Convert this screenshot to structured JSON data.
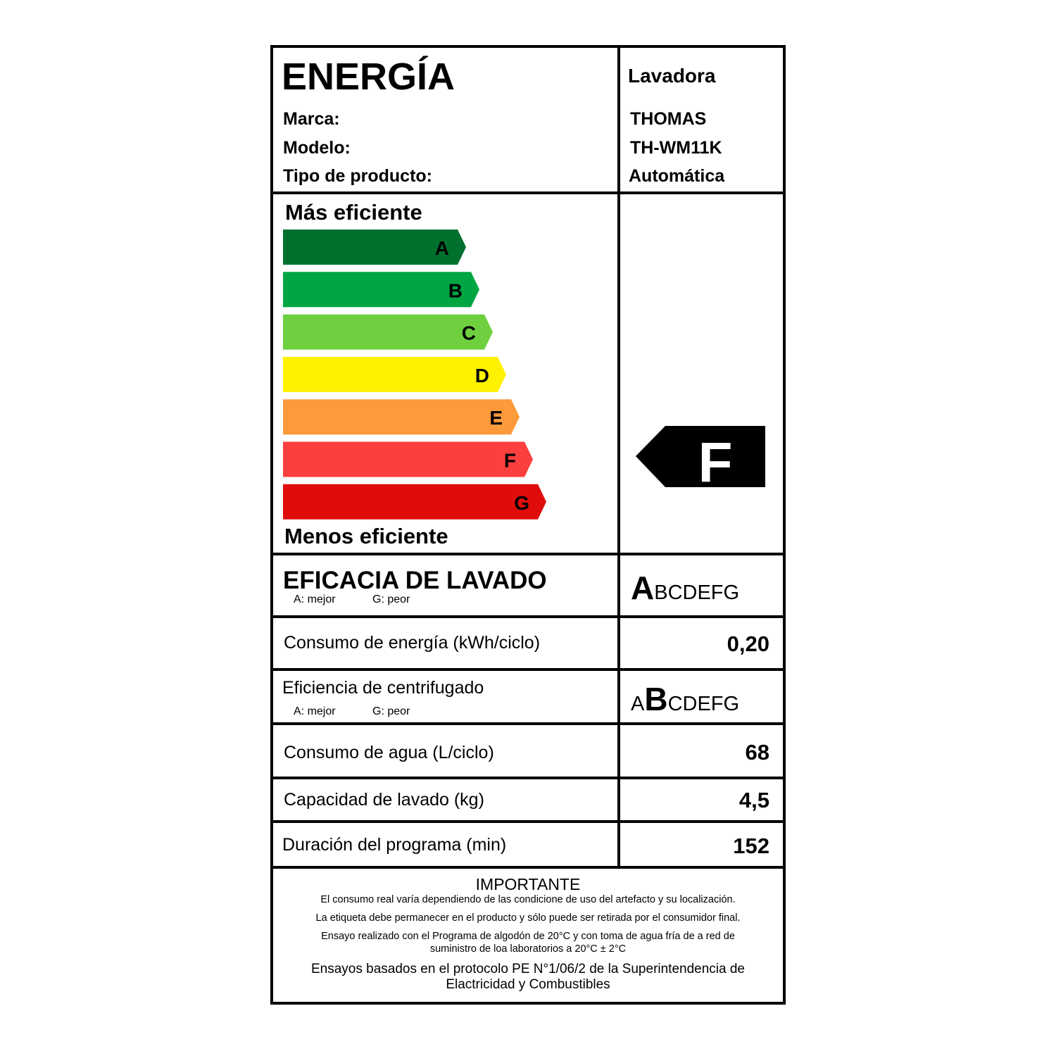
{
  "header": {
    "title": "ENERGÍA",
    "product": "Lavadora",
    "fields": [
      {
        "label": "Marca:",
        "value": "THOMAS"
      },
      {
        "label": "Modelo:",
        "value": "TH-WM11K"
      },
      {
        "label": "Tipo de producto:",
        "value": "Automática"
      }
    ]
  },
  "scale": {
    "top_label": "Más eficiente",
    "bottom_label": "Menos eficiente",
    "classes": [
      {
        "letter": "A",
        "color": "#00702e"
      },
      {
        "letter": "B",
        "color": "#00a642"
      },
      {
        "letter": "C",
        "color": "#6fd03f"
      },
      {
        "letter": "D",
        "color": "#fff200"
      },
      {
        "letter": "E",
        "color": "#fd9a3b"
      },
      {
        "letter": "F",
        "color": "#fb3e3e"
      },
      {
        "letter": "G",
        "color": "#e00c0c"
      }
    ],
    "rating": "F"
  },
  "washing": {
    "label": "EFICACIA DE LAVADO",
    "best": "A: mejor",
    "worst": "G: peor",
    "selected": "A",
    "rest": "BCDEFG"
  },
  "energy": {
    "label": "Consumo de energía (kWh/ciclo)",
    "value": "0,20"
  },
  "spin": {
    "label": "Eficiencia de centrifugado",
    "best": "A: mejor",
    "worst": "G: peor",
    "before": "A",
    "selected": "B",
    "rest": "CDEFG"
  },
  "water": {
    "label": "Consumo de agua (L/ciclo)",
    "value": "68"
  },
  "capacity": {
    "label": "Capacidad de lavado (kg)",
    "value": "4,5"
  },
  "duration": {
    "label": "Duración del programa (min)",
    "value": "152"
  },
  "important": {
    "title": "IMPORTANTE",
    "lines": [
      "El consumo real varía dependiendo  de las condicione de uso del artefacto y su localización.",
      "La etiqueta debe permanecer en el producto  y sólo puede ser retirada por el consumidor final.",
      "Ensayo realizado con el Programa de algodón de 20°C y con toma de agua fría de a red de",
      "suministro de loa laboratorios a 20°C ± 2°C"
    ],
    "footer": [
      "Ensayos basados en el protocolo PE N°1/06/2 de la Superintendencia de",
      "Elactricidad y Combustibles"
    ]
  }
}
